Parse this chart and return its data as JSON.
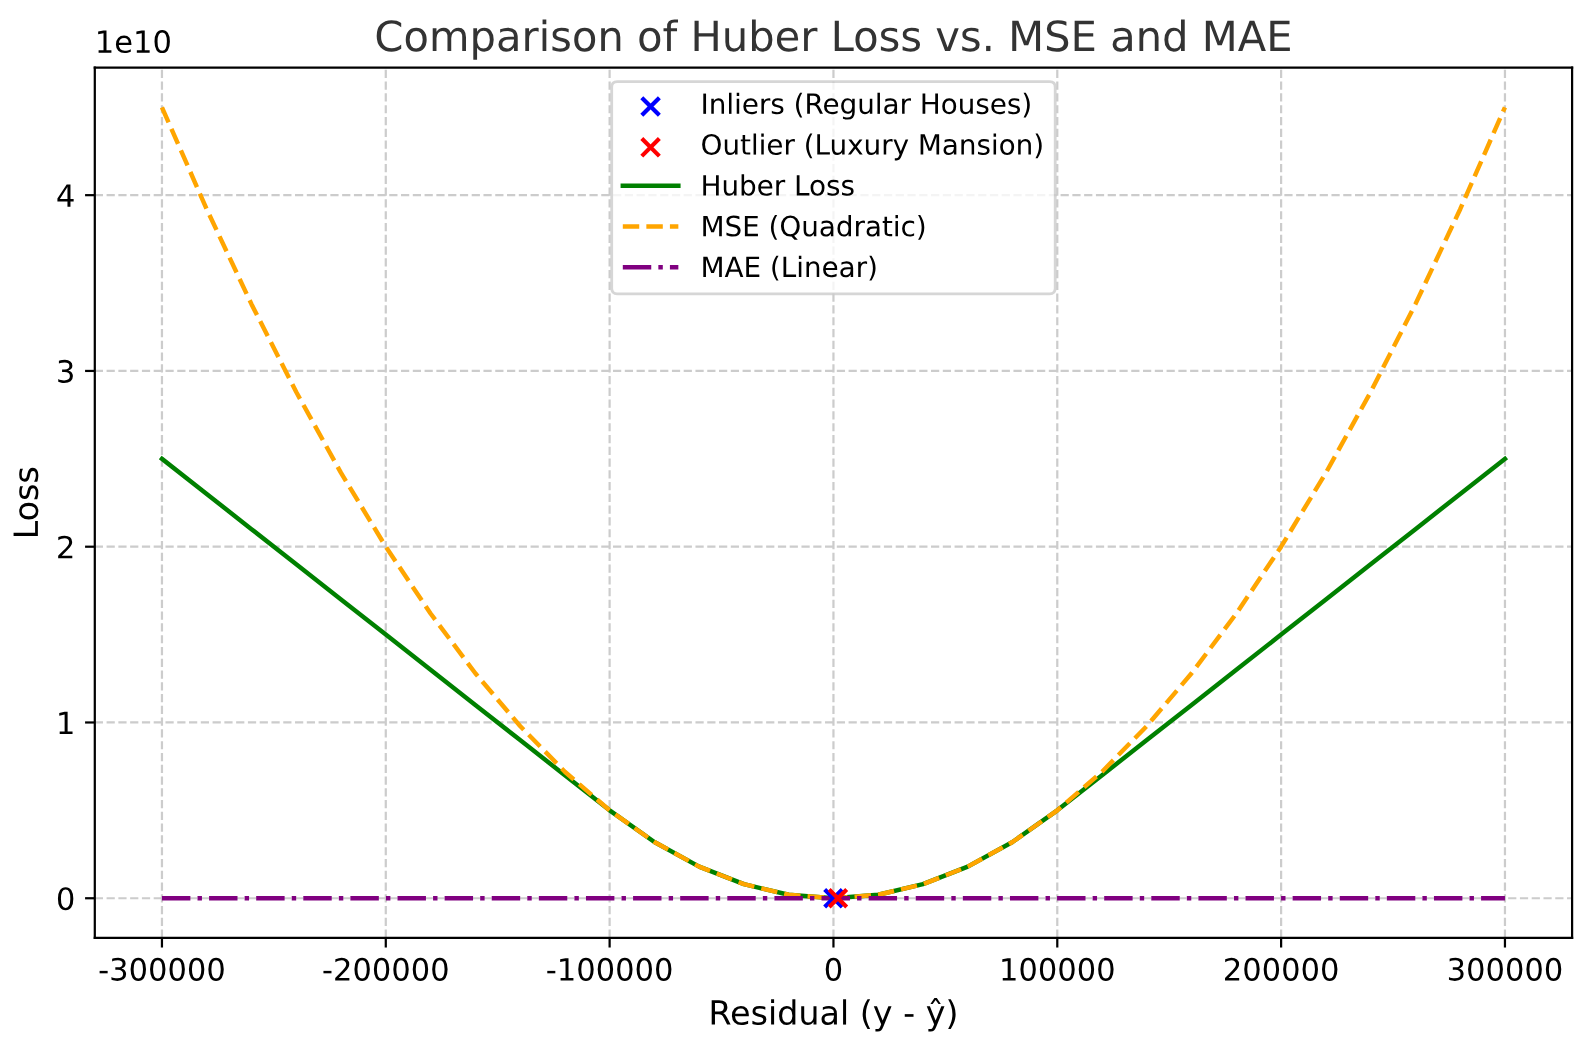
{
  "chart_data": {
    "type": "line",
    "title": "Comparison of Huber Loss vs. MSE and MAE",
    "xlabel": "Residual (y - ŷ)",
    "ylabel": "Loss",
    "annotations": [
      "1e10"
    ],
    "x": [
      -300000,
      -280000,
      -260000,
      -240000,
      -220000,
      -200000,
      -180000,
      -160000,
      -140000,
      -120000,
      -100000,
      -80000,
      -60000,
      -40000,
      -20000,
      0,
      20000,
      40000,
      60000,
      80000,
      100000,
      120000,
      140000,
      160000,
      180000,
      200000,
      220000,
      240000,
      260000,
      280000,
      300000
    ],
    "series": [
      {
        "name": "Inliers (Regular Houses)",
        "type": "scatter",
        "marker": "cross",
        "color": "#0000ff",
        "x": [
          0
        ],
        "values": [
          0
        ]
      },
      {
        "name": "Outlier (Luxury Mansion)",
        "type": "scatter",
        "marker": "cross",
        "color": "#ff0000",
        "x": [
          2000
        ],
        "values": [
          0
        ]
      },
      {
        "name": "Huber Loss",
        "color": "#008000",
        "line_style": "solid",
        "values": [
          2.5,
          2.3,
          2.1,
          1.9,
          1.7,
          1.5,
          1.3,
          1.1,
          0.9,
          0.7,
          0.5,
          0.32,
          0.18,
          0.08,
          0.02,
          0,
          0.02,
          0.08,
          0.18,
          0.32,
          0.5,
          0.7,
          0.9,
          1.1,
          1.3,
          1.5,
          1.7,
          1.9,
          2.1,
          2.3,
          2.5
        ]
      },
      {
        "name": "MSE (Quadratic)",
        "color": "#ffa500",
        "line_style": "dashed",
        "values": [
          4.5,
          3.92,
          3.38,
          2.88,
          2.42,
          2,
          1.62,
          1.28,
          0.98,
          0.72,
          0.5,
          0.32,
          0.18,
          0.08,
          0.02,
          0,
          0.02,
          0.08,
          0.18,
          0.32,
          0.5,
          0.72,
          0.98,
          1.28,
          1.62,
          2,
          2.42,
          2.88,
          3.38,
          3.92,
          4.5
        ]
      },
      {
        "name": "MAE (Linear)",
        "color": "#800080",
        "line_style": "dashdot",
        "values": [
          0,
          0,
          0,
          0,
          0,
          0,
          0,
          0,
          0,
          0,
          0,
          0,
          0,
          0,
          0,
          0,
          0,
          0,
          0,
          0,
          0,
          0,
          0,
          0,
          0,
          0,
          0,
          0,
          0,
          0,
          0
        ]
      }
    ],
    "xlim": [
      -330000,
      330000
    ],
    "xticks": [
      -300000,
      -200000,
      -100000,
      0,
      100000,
      200000,
      300000
    ],
    "ylim": [
      -0.225,
      4.725
    ],
    "yticks": [
      0,
      1,
      2,
      3,
      4
    ],
    "grid": true,
    "legend": "top"
  }
}
